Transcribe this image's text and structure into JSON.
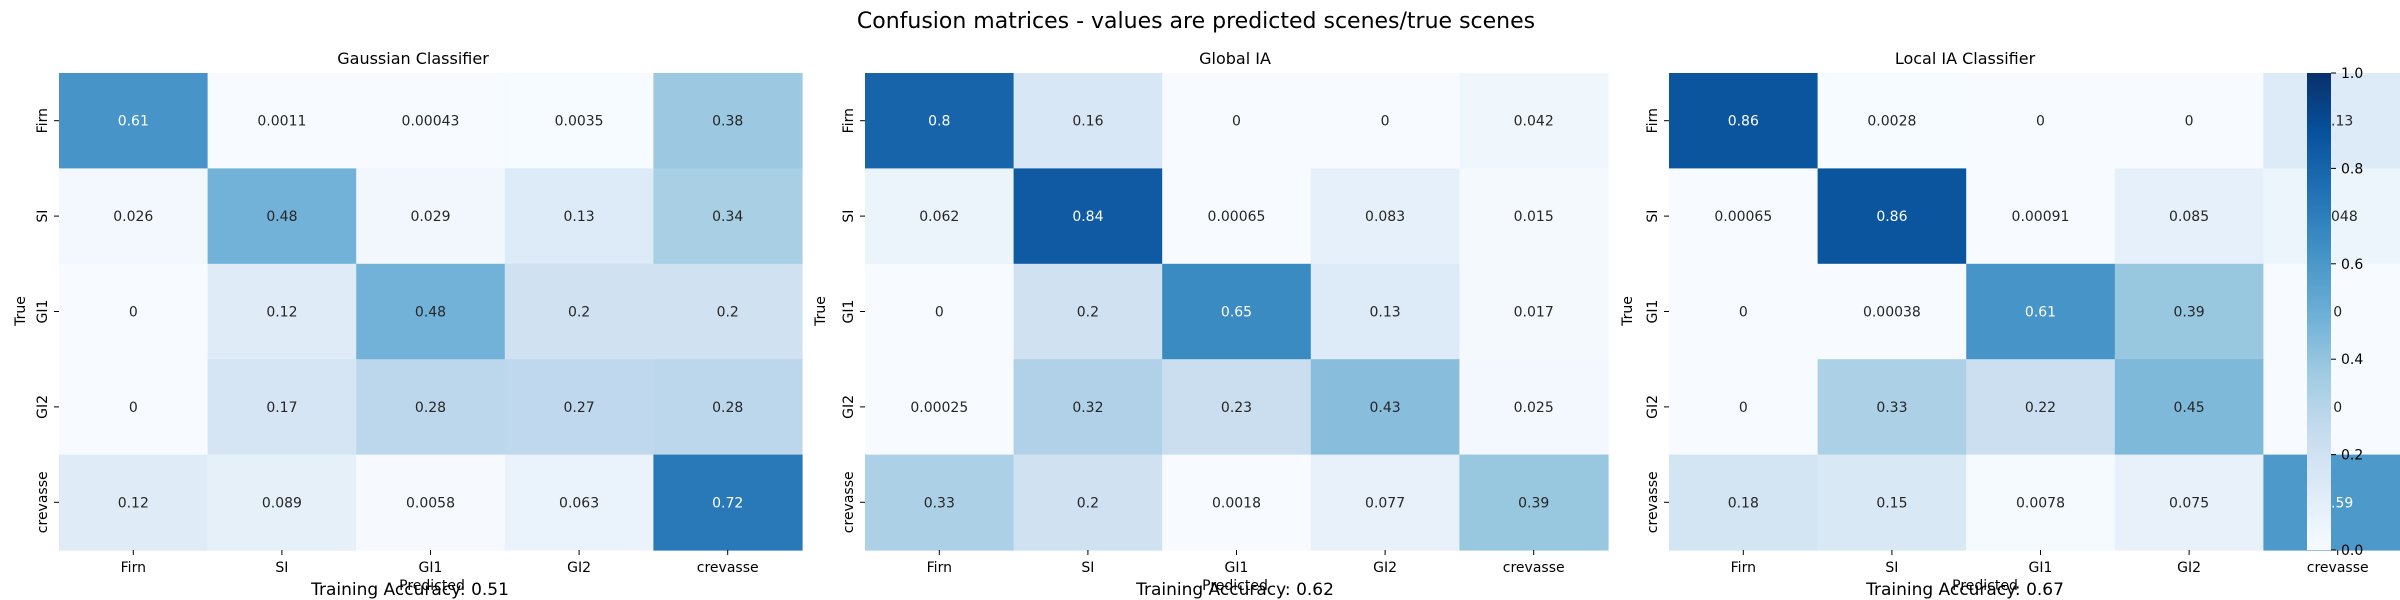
{
  "figure": {
    "title": "Confusion matrices - values are predicted scenes/true scenes"
  },
  "colors": {
    "cmap_low": "#f7fbff",
    "cmap_mid": "#6baed6",
    "cmap_high": "#08306b",
    "text_dark": "#262626",
    "text_light": "#ffffff"
  },
  "colorbar": {
    "ticks": [
      "0.0",
      "0.2",
      "0.4",
      "0.6",
      "0.8",
      "1.0"
    ],
    "range": [
      0,
      1
    ]
  },
  "chart_data": [
    {
      "type": "heatmap",
      "title": "Gaussian Classifier",
      "xlabel": "Predicted",
      "ylabel": "True",
      "x_categories": [
        "Firn",
        "SI",
        "GI1",
        "GI2",
        "crevasse"
      ],
      "y_categories": [
        "Firn",
        "SI",
        "GI1",
        "GI2",
        "crevasse"
      ],
      "values": [
        [
          "0.61",
          "0.0011",
          "0.00043",
          "0.0035",
          "0.38"
        ],
        [
          "0.026",
          "0.48",
          "0.029",
          "0.13",
          "0.34"
        ],
        [
          "0",
          "0.12",
          "0.48",
          "0.2",
          "0.2"
        ],
        [
          "0",
          "0.17",
          "0.28",
          "0.27",
          "0.28"
        ],
        [
          "0.12",
          "0.089",
          "0.0058",
          "0.063",
          "0.72"
        ]
      ],
      "vmin": 0,
      "vmax": 1,
      "caption": "Training Accuracy: 0.51"
    },
    {
      "type": "heatmap",
      "title": "Global IA",
      "xlabel": "Predicted",
      "ylabel": "True",
      "x_categories": [
        "Firn",
        "SI",
        "GI1",
        "GI2",
        "crevasse"
      ],
      "y_categories": [
        "Firn",
        "SI",
        "GI1",
        "GI2",
        "crevasse"
      ],
      "values": [
        [
          "0.8",
          "0.16",
          "0",
          "0",
          "0.042"
        ],
        [
          "0.062",
          "0.84",
          "0.00065",
          "0.083",
          "0.015"
        ],
        [
          "0",
          "0.2",
          "0.65",
          "0.13",
          "0.017"
        ],
        [
          "0.00025",
          "0.32",
          "0.23",
          "0.43",
          "0.025"
        ],
        [
          "0.33",
          "0.2",
          "0.0018",
          "0.077",
          "0.39"
        ]
      ],
      "vmin": 0,
      "vmax": 1,
      "caption": "Training Accuracy: 0.62"
    },
    {
      "type": "heatmap",
      "title": "Local IA Classifier",
      "xlabel": "Predicted",
      "ylabel": "True",
      "x_categories": [
        "Firn",
        "SI",
        "GI1",
        "GI2",
        "crevasse"
      ],
      "y_categories": [
        "Firn",
        "SI",
        "GI1",
        "GI2",
        "crevasse"
      ],
      "values": [
        [
          "0.86",
          "0.0028",
          "0",
          "0",
          "0.13"
        ],
        [
          "0.00065",
          "0.86",
          "0.00091",
          "0.085",
          "0.048"
        ],
        [
          "0",
          "0.00038",
          "0.61",
          "0.39",
          "0"
        ],
        [
          "0",
          "0.33",
          "0.22",
          "0.45",
          "0"
        ],
        [
          "0.18",
          "0.15",
          "0.0078",
          "0.075",
          "0.59"
        ]
      ],
      "vmin": 0,
      "vmax": 1,
      "caption": "Training Accuracy: 0.67"
    }
  ]
}
